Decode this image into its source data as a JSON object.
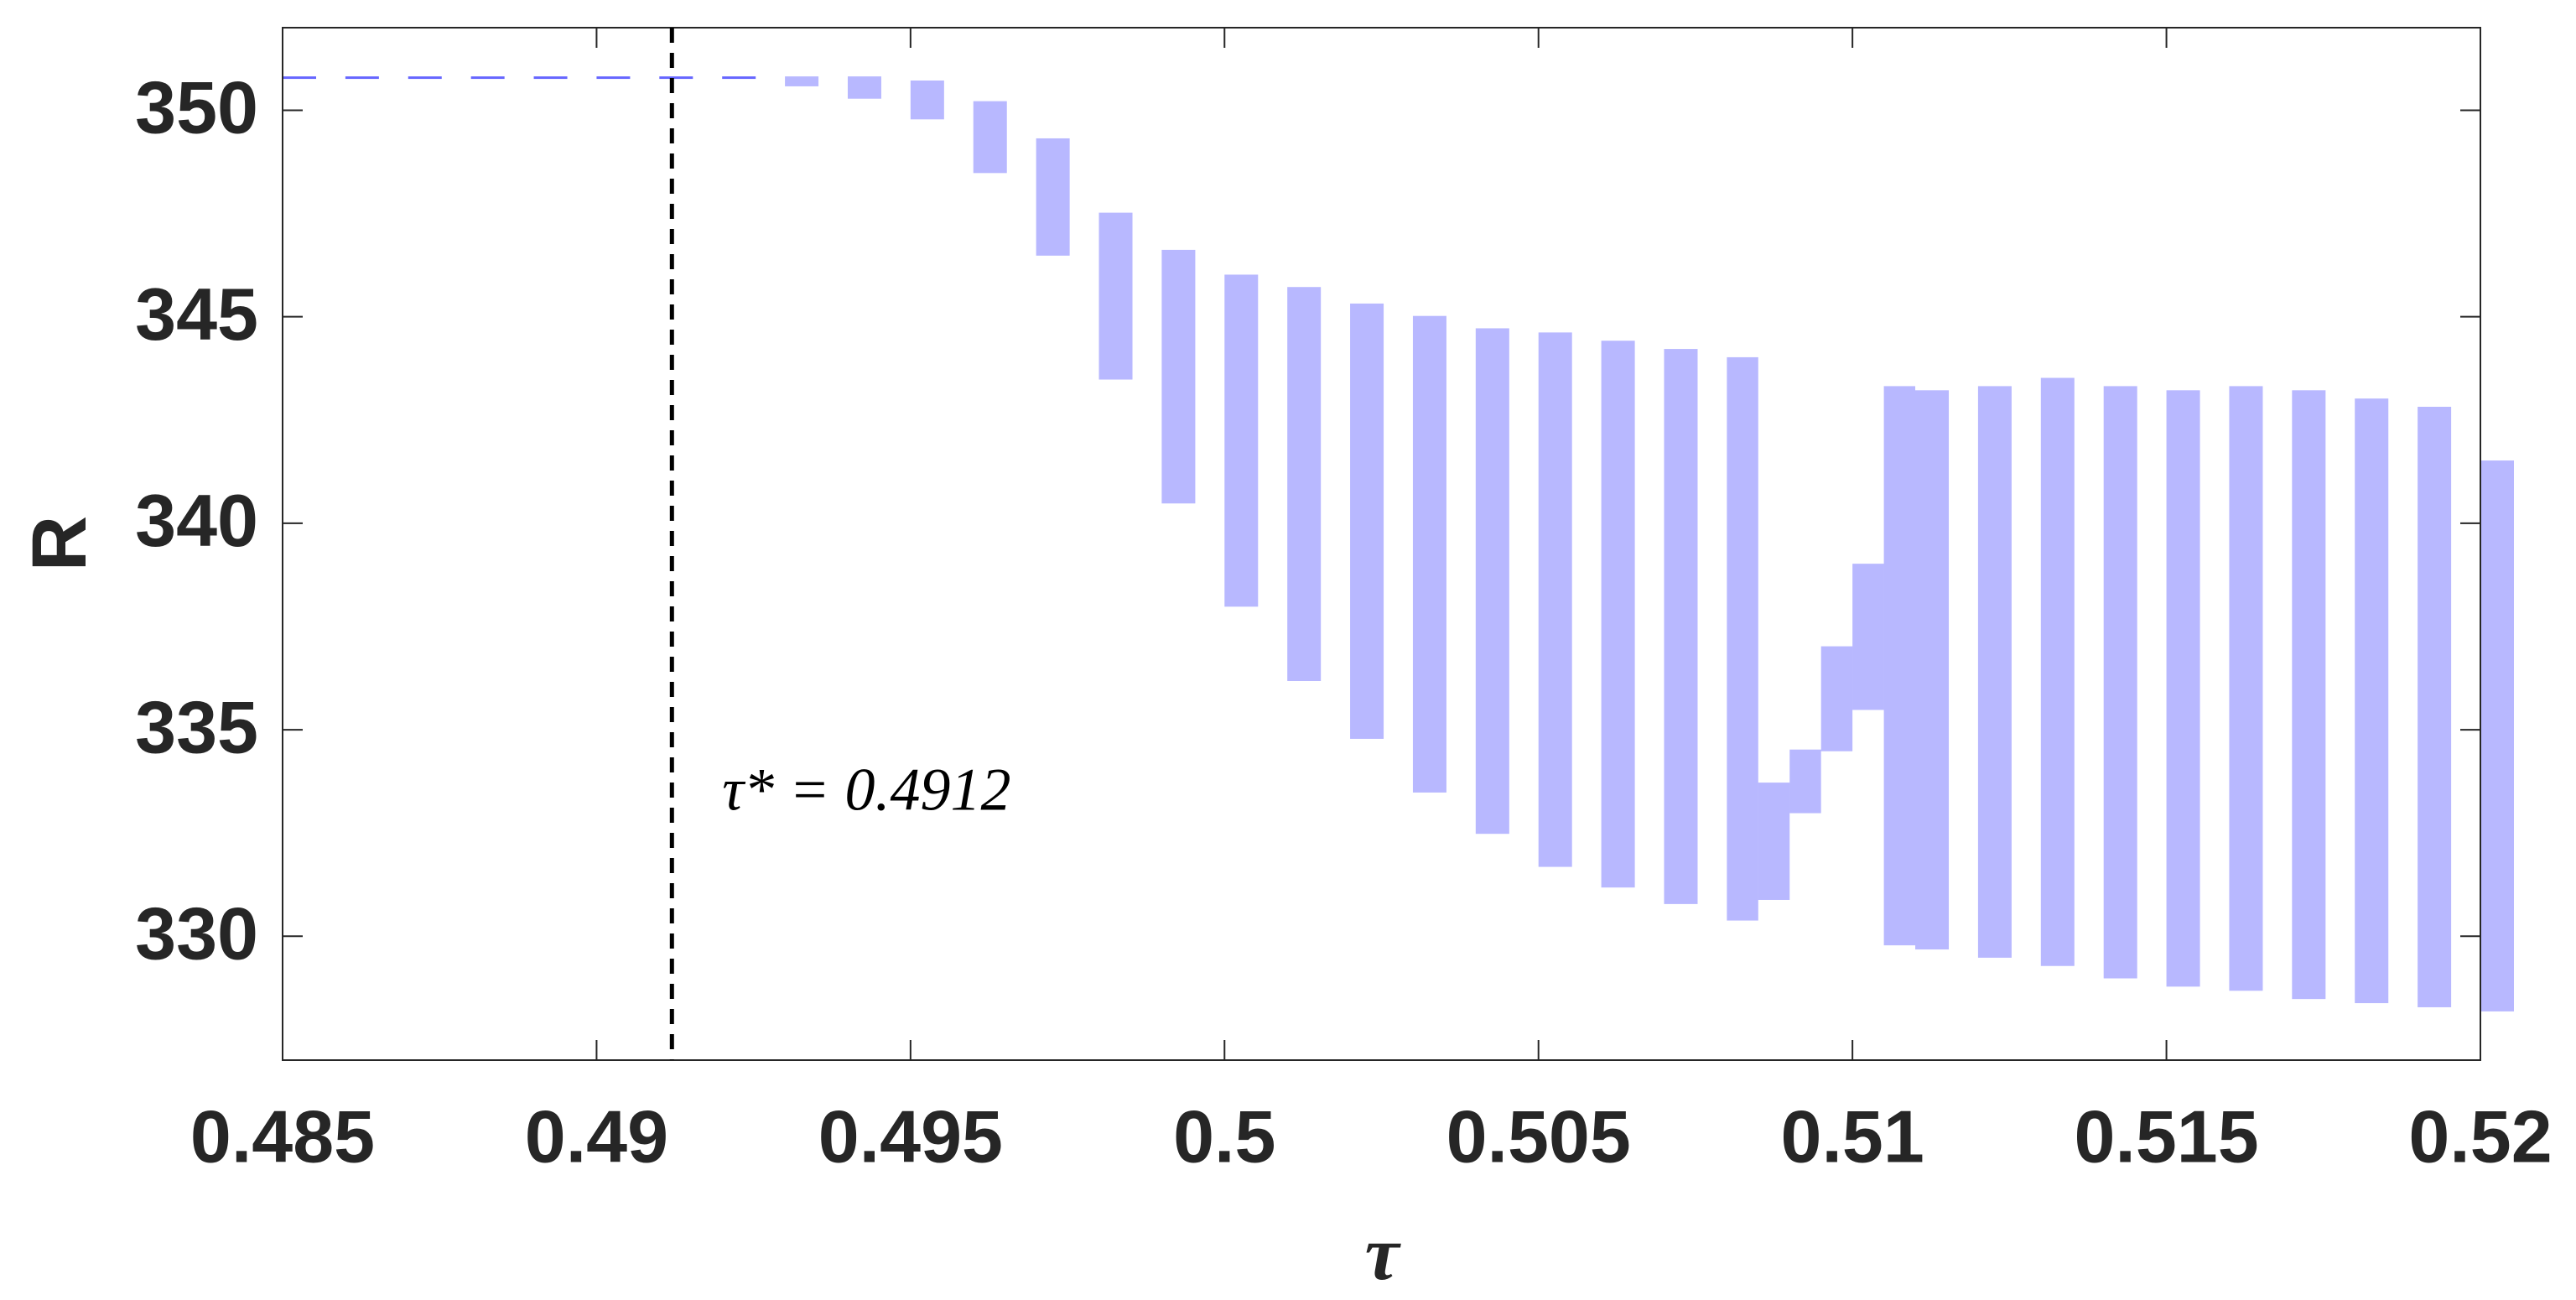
{
  "chart_data": {
    "type": "range",
    "x_label": "τ",
    "y_label": "R",
    "color": "#0000ff",
    "x": [
      0.485,
      0.486,
      0.487,
      0.488,
      0.489,
      0.49,
      0.491,
      0.492,
      0.493,
      0.494,
      0.495,
      0.496,
      0.497,
      0.498,
      0.499,
      0.5,
      0.501,
      0.502,
      0.503,
      0.504,
      0.505,
      0.506,
      0.507,
      0.508,
      0.5085,
      0.509,
      0.5095,
      0.51,
      0.5105,
      0.511,
      0.512,
      0.513,
      0.514,
      0.515,
      0.516,
      0.517,
      0.518,
      0.519,
      0.52
    ],
    "low": [
      350.8,
      350.8,
      350.8,
      350.8,
      350.8,
      350.8,
      350.8,
      350.8,
      350.6,
      350.3,
      349.8,
      348.5,
      346.5,
      343.5,
      340.5,
      338.0,
      336.2,
      334.8,
      333.5,
      332.5,
      331.7,
      331.2,
      330.8,
      330.4,
      330.9,
      333.0,
      334.5,
      335.5,
      329.8,
      329.7,
      329.5,
      329.3,
      329.0,
      328.8,
      328.7,
      328.5,
      328.4,
      328.3,
      328.2
    ],
    "high": [
      350.8,
      350.8,
      350.8,
      350.8,
      350.8,
      350.8,
      350.8,
      350.8,
      350.8,
      350.8,
      350.7,
      350.2,
      349.3,
      347.5,
      346.6,
      346.0,
      345.7,
      345.3,
      345.0,
      344.7,
      344.6,
      344.4,
      344.2,
      344.0,
      333.7,
      334.5,
      337.0,
      339.0,
      343.3,
      343.2,
      343.3,
      343.5,
      343.3,
      343.2,
      343.3,
      343.2,
      343.0,
      342.8,
      341.5
    ],
    "xlim": [
      0.485,
      0.52
    ],
    "ylim": [
      327,
      352
    ],
    "xticks": [
      0.485,
      0.49,
      0.495,
      0.5,
      0.505,
      0.51,
      0.515,
      0.52
    ],
    "yticks": [
      330,
      335,
      340,
      345,
      350
    ],
    "vline": {
      "value": 0.4912,
      "style": "dashed",
      "color": "#000000"
    },
    "annotation": {
      "text": "τ* = 0.4912",
      "x": 0.492,
      "y": 333.4
    }
  }
}
